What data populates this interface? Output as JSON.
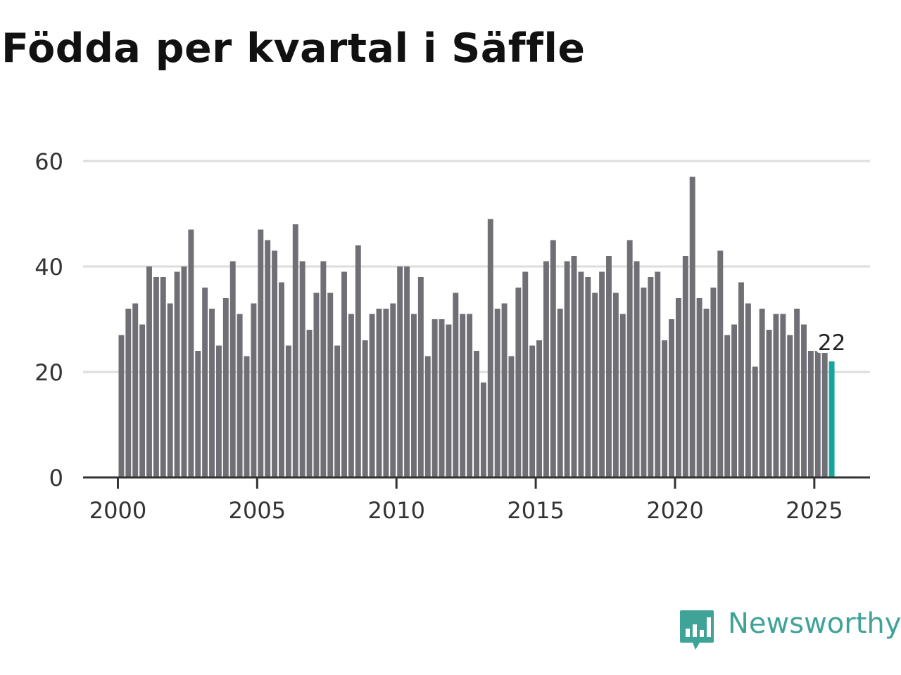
{
  "title": "Födda per kvartal i Säffle",
  "brand": {
    "name": "Newsworthy",
    "icon": "newsworthy-logo-icon"
  },
  "colors": {
    "bar": "#6f6f75",
    "highlight": "#16a59a",
    "grid": "#dddddd",
    "axis": "#333333",
    "title": "#111111",
    "brand": "#3fa397"
  },
  "chart_data": {
    "type": "bar",
    "title": "Födda per kvartal i Säffle",
    "xlabel": "",
    "ylabel": "",
    "ylim": [
      0,
      60
    ],
    "yticks": [
      0,
      20,
      40,
      60
    ],
    "xticks": [
      2000,
      2005,
      2010,
      2015,
      2020,
      2025
    ],
    "x_start_year": 2000,
    "x_end_year": 2025.75,
    "x_axis_range": [
      1998.75,
      2027
    ],
    "quarters_per_year": 4,
    "values": [
      27,
      32,
      33,
      29,
      40,
      38,
      38,
      33,
      39,
      40,
      47,
      24,
      36,
      32,
      25,
      34,
      41,
      31,
      23,
      33,
      47,
      45,
      43,
      37,
      25,
      48,
      41,
      28,
      35,
      41,
      35,
      25,
      39,
      31,
      44,
      26,
      31,
      32,
      32,
      33,
      40,
      40,
      31,
      38,
      23,
      30,
      30,
      29,
      35,
      31,
      31,
      24,
      18,
      49,
      32,
      33,
      23,
      36,
      39,
      25,
      26,
      41,
      45,
      32,
      41,
      42,
      39,
      38,
      35,
      39,
      42,
      35,
      31,
      45,
      41,
      36,
      38,
      39,
      26,
      30,
      34,
      42,
      57,
      34,
      32,
      36,
      43,
      27,
      29,
      37,
      33,
      21,
      32,
      28,
      31,
      31,
      27,
      32,
      29,
      24,
      24,
      24,
      22
    ],
    "highlight_index": 102,
    "annotation": {
      "index": 102,
      "text": "22"
    },
    "grid": true
  }
}
